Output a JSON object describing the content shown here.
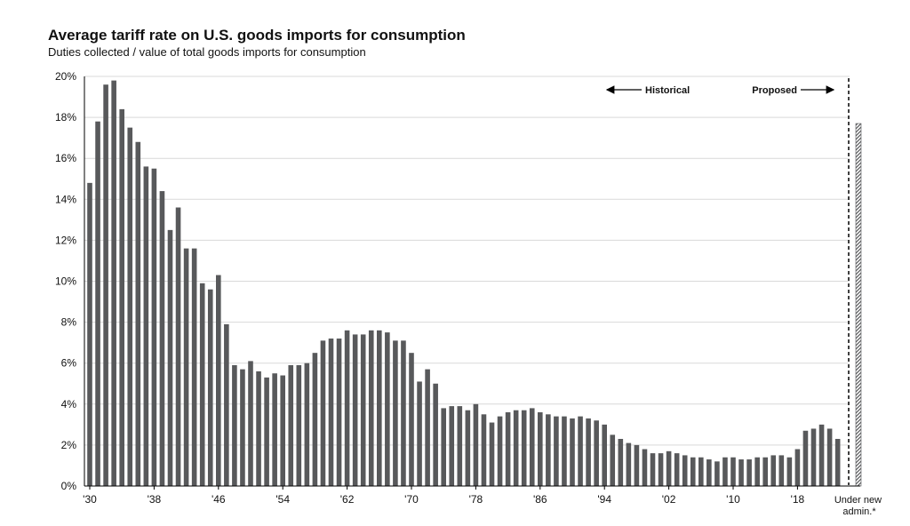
{
  "colors": {
    "bar": "#58595b",
    "grid": "#d9d9d9",
    "axis": "#000000",
    "text": "#111111"
  },
  "chart_data": {
    "type": "bar",
    "title": "Average tariff rate on U.S. goods imports for consumption",
    "subtitle": "Duties collected / value of total goods imports for consumption",
    "xlabel": "",
    "ylabel": "",
    "ylim": [
      0,
      20
    ],
    "grid": true,
    "y_ticks": [
      "0%",
      "2%",
      "4%",
      "6%",
      "8%",
      "10%",
      "12%",
      "14%",
      "16%",
      "18%",
      "20%"
    ],
    "x_tick_labels": [
      "'30",
      "'38",
      "'46",
      "'54",
      "'62",
      "'70",
      "'78",
      "'86",
      "'94",
      "'02",
      "'10",
      "'18"
    ],
    "first_year": 1930,
    "last_year": 2024,
    "values": [
      14.8,
      17.8,
      19.6,
      19.8,
      18.4,
      17.5,
      16.8,
      15.6,
      15.5,
      14.4,
      12.5,
      13.6,
      11.6,
      11.6,
      9.9,
      9.6,
      10.3,
      7.9,
      5.9,
      5.7,
      6.1,
      5.6,
      5.3,
      5.5,
      5.4,
      5.9,
      5.9,
      6.0,
      6.5,
      7.1,
      7.2,
      7.2,
      7.6,
      7.4,
      7.4,
      7.6,
      7.6,
      7.5,
      7.1,
      7.1,
      6.5,
      5.1,
      5.7,
      5.0,
      3.8,
      3.9,
      3.9,
      3.7,
      4.0,
      3.5,
      3.1,
      3.4,
      3.6,
      3.7,
      3.7,
      3.8,
      3.6,
      3.5,
      3.4,
      3.4,
      3.3,
      3.4,
      3.3,
      3.2,
      3.0,
      2.5,
      2.3,
      2.1,
      2.0,
      1.8,
      1.6,
      1.6,
      1.7,
      1.6,
      1.5,
      1.4,
      1.4,
      1.3,
      1.2,
      1.4,
      1.4,
      1.3,
      1.3,
      1.4,
      1.4,
      1.5,
      1.5,
      1.4,
      1.8,
      2.7,
      2.8,
      3.0,
      2.8,
      2.3,
      0
    ],
    "proposed": {
      "label": "Under new admin.*",
      "value": 17.7
    },
    "annotations": {
      "historical": "Historical",
      "proposed": "Proposed"
    }
  }
}
